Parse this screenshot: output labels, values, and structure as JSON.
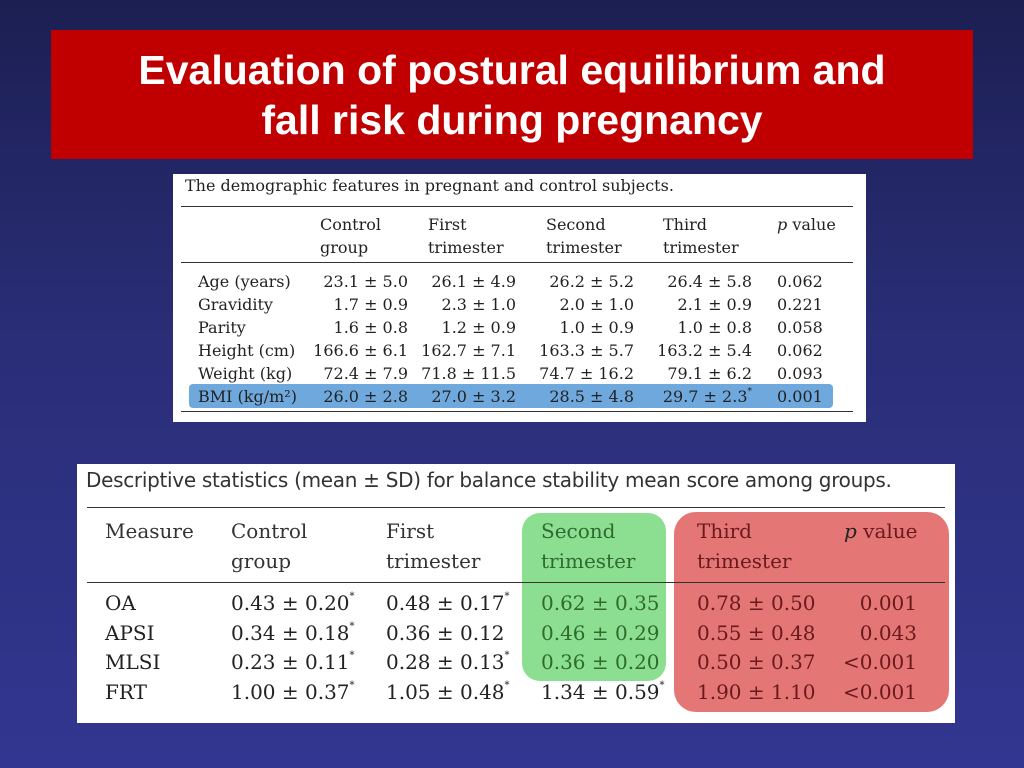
{
  "title": {
    "line1": "Evaluation of postural equilibrium and",
    "line2": "fall risk during pregnancy"
  },
  "table1": {
    "caption": "The demographic features in pregnant and control subjects.",
    "headers": {
      "c1a": "Control",
      "c1b": "group",
      "c2a": "First",
      "c2b": "trimester",
      "c3a": "Second",
      "c3b": "trimester",
      "c4a": "Third",
      "c4b": "trimester",
      "pa": "p",
      "pb": " value"
    },
    "rows": [
      {
        "label": "Age (years)",
        "control": "23.1 ± 5.0",
        "first": "26.1 ± 4.9",
        "second": "26.2 ± 5.2",
        "third": "26.4 ± 5.8",
        "third_mark": "",
        "p": "0.062"
      },
      {
        "label": "Gravidity",
        "control": "1.7 ± 0.9",
        "first": "2.3 ± 1.0",
        "second": "2.0 ± 1.0",
        "third": "2.1 ± 0.9",
        "third_mark": "",
        "p": "0.221"
      },
      {
        "label": "Parity",
        "control": "1.6 ± 0.8",
        "first": "1.2 ± 0.9",
        "second": "1.0 ± 0.9",
        "third": "1.0 ± 0.8",
        "third_mark": "",
        "p": "0.058"
      },
      {
        "label": "Height (cm)",
        "control": "166.6 ± 6.1",
        "first": "162.7 ± 7.1",
        "second": "163.3 ± 5.7",
        "third": "163.2 ± 5.4",
        "third_mark": "",
        "p": "0.062"
      },
      {
        "label": "Weight (kg)",
        "control": "72.4 ± 7.9",
        "first": "71.8 ± 11.5",
        "second": "74.7 ± 16.2",
        "third": "79.1 ± 6.2",
        "third_mark": "",
        "p": "0.093"
      },
      {
        "label": "BMI (kg/m²)",
        "control": "26.0 ± 2.8",
        "first": "27.0 ± 3.2",
        "second": "28.5 ± 4.8",
        "third": "29.7 ± 2.3",
        "third_mark": "*",
        "p": "0.001"
      }
    ],
    "highlight_color": "#6fa8dc"
  },
  "table2": {
    "caption": "Descriptive statistics (mean ± SD) for balance stability mean score among groups.",
    "headers": {
      "measure": "Measure",
      "c1a": "Control",
      "c1b": "group",
      "c2a": "First",
      "c2b": "trimester",
      "c3a": "Second",
      "c3b": "trimester",
      "c4a": "Third",
      "c4b": "trimester",
      "pa": "p",
      "pb": " value"
    },
    "rows": [
      {
        "label": "OA",
        "control": "0.43 ± 0.20",
        "control_mark": "*",
        "first": "0.48 ± 0.17",
        "first_mark": "*",
        "second": "0.62 ± 0.35",
        "second_mark": "",
        "third": "0.78 ± 0.50",
        "p": "0.001"
      },
      {
        "label": "APSI",
        "control": "0.34 ± 0.18",
        "control_mark": "*",
        "first": "0.36 ± 0.12",
        "first_mark": "",
        "second": "0.46 ± 0.29",
        "second_mark": "",
        "third": "0.55 ± 0.48",
        "p": "0.043"
      },
      {
        "label": "MLSI",
        "control": "0.23 ± 0.11",
        "control_mark": "*",
        "first": "0.28 ± 0.13",
        "first_mark": "*",
        "second": "0.36 ± 0.20",
        "second_mark": "",
        "third": "0.50 ± 0.37",
        "p": "<0.001"
      },
      {
        "label": "FRT",
        "control": "1.00 ± 0.37",
        "control_mark": "*",
        "first": "1.05 ± 0.48",
        "first_mark": "*",
        "second": "1.34 ± 0.59",
        "second_mark": "*",
        "third": "1.90 ± 1.10",
        "p": "<0.001"
      }
    ],
    "highlight_second_color": "#7fdc84",
    "highlight_third_color": "#e26a6a"
  }
}
